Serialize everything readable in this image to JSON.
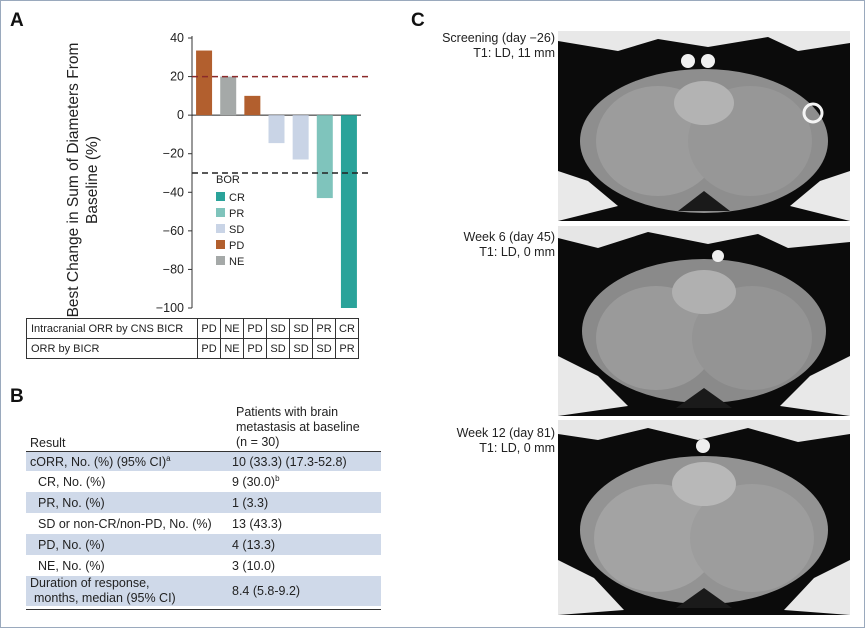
{
  "panels": {
    "a": "A",
    "b": "B",
    "c": "C"
  },
  "chart_data": {
    "type": "bar",
    "ylabel": "Best Change in Sum of Diameters From Baseline (%)",
    "ylim": [
      -100,
      40
    ],
    "yticks": [
      40,
      20,
      0,
      -20,
      -40,
      -60,
      -80,
      -100
    ],
    "bars": [
      {
        "bor": "PD",
        "value": 33.5
      },
      {
        "bor": "NE",
        "value": 20
      },
      {
        "bor": "PD",
        "value": 10
      },
      {
        "bor": "SD",
        "value": -14.5
      },
      {
        "bor": "SD",
        "value": -23
      },
      {
        "bor": "PR",
        "value": -43
      },
      {
        "bor": "CR",
        "value": -100
      }
    ],
    "reference_lines": [
      {
        "value": 20,
        "color": "#8b2a2a"
      },
      {
        "value": -30,
        "color": "#222222"
      }
    ],
    "legend": {
      "title": "BOR",
      "items": [
        {
          "label": "CR",
          "color": "#2aa39a"
        },
        {
          "label": "PR",
          "color": "#7fc4bc"
        },
        {
          "label": "SD",
          "color": "#c9d4e6"
        },
        {
          "label": "PD",
          "color": "#b25f2e"
        },
        {
          "label": "NE",
          "color": "#a5a9a8"
        }
      ]
    }
  },
  "orr_table": {
    "rows": [
      {
        "label": "Intracranial ORR by CNS BICR",
        "cells": [
          "PD",
          "NE",
          "PD",
          "SD",
          "SD",
          "PR",
          "CR"
        ]
      },
      {
        "label": "ORR by BICR",
        "cells": [
          "PD",
          "NE",
          "PD",
          "SD",
          "SD",
          "SD",
          "PR"
        ]
      }
    ]
  },
  "results": {
    "header_result": "Result",
    "header_patients": [
      "Patients with brain",
      "metastasis at baseline",
      "(n = 30)"
    ],
    "rows": [
      {
        "label": "cORR, No. (%) (95% CI)",
        "sup": "a",
        "value": "10 (33.3) (17.3-52.8)",
        "vsup": "",
        "shade": true
      },
      {
        "label": "CR, No. (%)",
        "sup": "",
        "value": "9 (30.0)",
        "vsup": "b",
        "shade": false,
        "indent": true
      },
      {
        "label": "PR, No. (%)",
        "sup": "",
        "value": "1 (3.3)",
        "vsup": "",
        "shade": true,
        "indent": true
      },
      {
        "label": "SD or non-CR/non-PD, No. (%)",
        "sup": "",
        "value": "13 (43.3)",
        "vsup": "",
        "shade": false,
        "indent": true
      },
      {
        "label": "PD, No. (%)",
        "sup": "",
        "value": "4 (13.3)",
        "vsup": "",
        "shade": true,
        "indent": true
      },
      {
        "label": "NE, No. (%)",
        "sup": "",
        "value": "3 (10.0)",
        "vsup": "",
        "shade": false,
        "indent": true
      },
      {
        "label": "Duration of response,",
        "label2": "months, median (95% CI)",
        "sup": "",
        "value": "8.4 (5.8-9.2)",
        "vsup": "",
        "shade": true
      }
    ]
  },
  "scans": [
    {
      "line1": "Screening (day −26)",
      "line2": "T1: LD, 11 mm"
    },
    {
      "line1": "Week 6 (day 45)",
      "line2": "T1: LD, 0 mm"
    },
    {
      "line1": "Week 12 (day 81)",
      "line2": "T1: LD, 0 mm"
    }
  ]
}
